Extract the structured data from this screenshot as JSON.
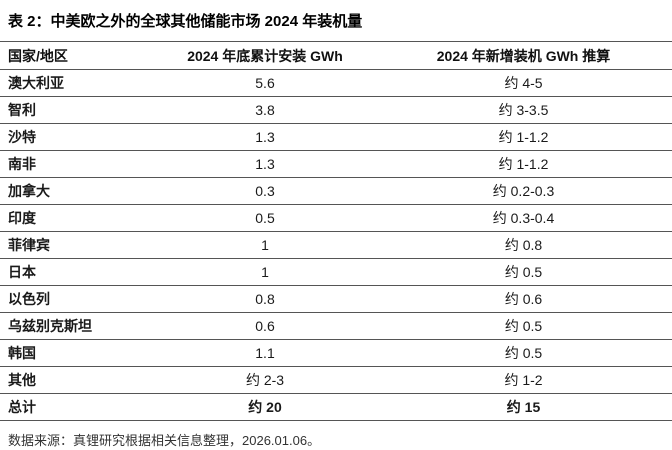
{
  "page": {
    "title": "表 2：中美欧之外的全球其他储能市场 2024 年装机量",
    "source_note": "数据来源：真锂研究根据相关信息整理，2026.01.06。"
  },
  "table": {
    "columns": {
      "region": "国家/地区",
      "cumulative": "2024 年底累计安装 GWh",
      "added": "2024 年新增装机 GWh 推算"
    },
    "rows": [
      {
        "region": "澳大利亚",
        "cumulative": "5.6",
        "added": "约 4-5"
      },
      {
        "region": "智利",
        "cumulative": "3.8",
        "added": "约 3-3.5"
      },
      {
        "region": "沙特",
        "cumulative": "1.3",
        "added": "约 1-1.2"
      },
      {
        "region": "南非",
        "cumulative": "1.3",
        "added": "约 1-1.2"
      },
      {
        "region": "加拿大",
        "cumulative": "0.3",
        "added": "约 0.2-0.3"
      },
      {
        "region": "印度",
        "cumulative": "0.5",
        "added": "约 0.3-0.4"
      },
      {
        "region": "菲律宾",
        "cumulative": "1",
        "added": "约 0.8"
      },
      {
        "region": "日本",
        "cumulative": "1",
        "added": "约 0.5"
      },
      {
        "region": "以色列",
        "cumulative": "0.8",
        "added": "约 0.6"
      },
      {
        "region": "乌兹别克斯坦",
        "cumulative": "0.6",
        "added": "约 0.5"
      },
      {
        "region": "韩国",
        "cumulative": "1.1",
        "added": "约 0.5"
      },
      {
        "region": "其他",
        "cumulative": "约 2-3",
        "added": "约 1-2"
      },
      {
        "region": "总计",
        "cumulative": "约 20",
        "added": "约 15"
      }
    ]
  },
  "chart_data": {
    "type": "table",
    "title": "表 2：中美欧之外的全球其他储能市场 2024 年装机量",
    "columns": [
      "国家/地区",
      "2024 年底累计安装 GWh",
      "2024 年新增装机 GWh 推算"
    ],
    "rows": [
      [
        "澳大利亚",
        "5.6",
        "约 4-5"
      ],
      [
        "智利",
        "3.8",
        "约 3-3.5"
      ],
      [
        "沙特",
        "1.3",
        "约 1-1.2"
      ],
      [
        "南非",
        "1.3",
        "约 1-1.2"
      ],
      [
        "加拿大",
        "0.3",
        "约 0.2-0.3"
      ],
      [
        "印度",
        "0.5",
        "约 0.3-0.4"
      ],
      [
        "菲律宾",
        "1",
        "约 0.8"
      ],
      [
        "日本",
        "1",
        "约 0.5"
      ],
      [
        "以色列",
        "0.8",
        "约 0.6"
      ],
      [
        "乌兹别克斯坦",
        "0.6",
        "约 0.5"
      ],
      [
        "韩国",
        "1.1",
        "约 0.5"
      ],
      [
        "其他",
        "约 2-3",
        "约 1-2"
      ],
      [
        "总计",
        "约 20",
        "约 15"
      ]
    ],
    "source": "数据来源：真锂研究根据相关信息整理，2026.01.06。"
  },
  "colors": {
    "background": "#ffffff",
    "rule_line": "#555555",
    "text": "#1a1a1a",
    "source_text": "#333333"
  }
}
